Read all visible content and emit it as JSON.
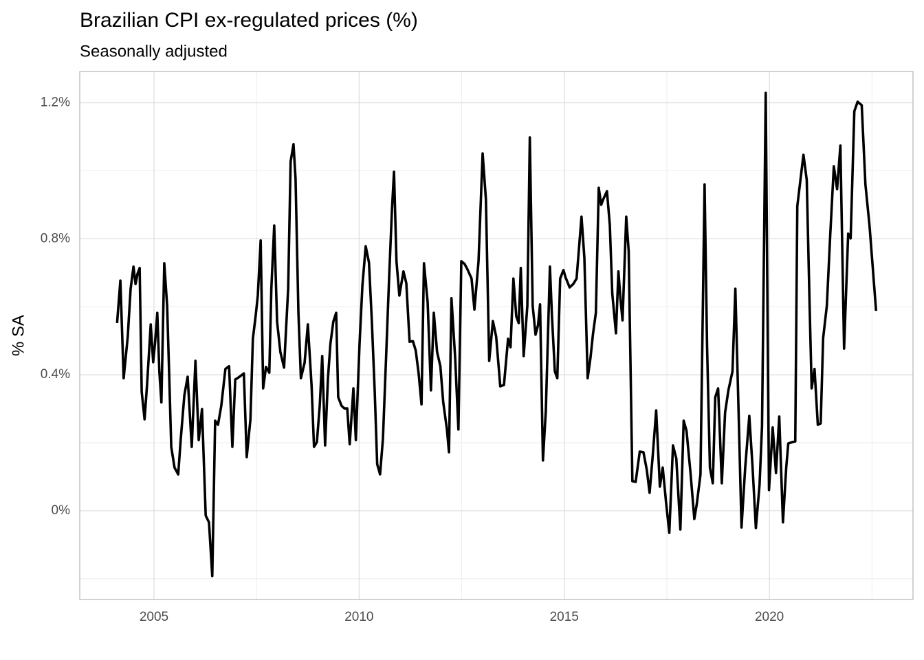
{
  "chart_data": {
    "type": "line",
    "title": "Brazilian CPI ex-regulated prices (%)",
    "subtitle": "Seasonally adjusted",
    "y_label": "% SA",
    "xlim": [
      2003.19,
      2023.5
    ],
    "xticks": [
      2005,
      2010,
      2015,
      2020
    ],
    "minor_xticks": [
      2007.5,
      2012.5,
      2017.5,
      2022.5
    ],
    "ylim": [
      -0.261,
      1.292
    ],
    "yticks": [
      {
        "value": 0,
        "label": "0%"
      },
      {
        "value": 0.4,
        "label": "0.4%"
      },
      {
        "value": 0.8,
        "label": "0.8%"
      },
      {
        "value": 1.2,
        "label": "1.2%"
      }
    ],
    "minor_yticks": [
      -0.2,
      0.2,
      0.6,
      1.0
    ],
    "grid": true,
    "x": [
      2004.1,
      2004.18,
      2004.26,
      2004.36,
      2004.43,
      2004.5,
      2004.55,
      2004.6,
      2004.65,
      2004.7,
      2004.77,
      2004.83,
      2004.92,
      2004.98,
      2005.03,
      2005.08,
      2005.13,
      2005.18,
      2005.25,
      2005.32,
      2005.37,
      2005.42,
      2005.5,
      2005.59,
      2005.65,
      2005.74,
      2005.82,
      2005.92,
      2006.01,
      2006.09,
      2006.17,
      2006.26,
      2006.34,
      2006.42,
      2006.49,
      2006.56,
      2006.64,
      2006.74,
      2006.83,
      2006.91,
      2006.98,
      2007.06,
      2007.19,
      2007.26,
      2007.35,
      2007.41,
      2007.48,
      2007.53,
      2007.6,
      2007.66,
      2007.73,
      2007.81,
      2007.86,
      2007.93,
      2008.0,
      2008.08,
      2008.17,
      2008.27,
      2008.33,
      2008.4,
      2008.45,
      2008.52,
      2008.58,
      2008.67,
      2008.75,
      2008.84,
      2008.9,
      2008.97,
      2009.04,
      2009.1,
      2009.17,
      2009.24,
      2009.3,
      2009.37,
      2009.44,
      2009.49,
      2009.57,
      2009.64,
      2009.71,
      2009.77,
      2009.86,
      2009.92,
      2010.01,
      2010.08,
      2010.16,
      2010.24,
      2010.31,
      2010.38,
      2010.44,
      2010.51,
      2010.58,
      2010.66,
      2010.73,
      2010.8,
      2010.85,
      2010.91,
      2010.98,
      2011.08,
      2011.15,
      2011.23,
      2011.31,
      2011.38,
      2011.45,
      2011.52,
      2011.58,
      2011.67,
      2011.75,
      2011.82,
      2011.9,
      2011.98,
      2012.05,
      2012.14,
      2012.19,
      2012.25,
      2012.34,
      2012.42,
      2012.49,
      2012.57,
      2012.64,
      2012.74,
      2012.81,
      2012.91,
      2013.01,
      2013.09,
      2013.17,
      2013.26,
      2013.34,
      2013.44,
      2013.53,
      2013.63,
      2013.69,
      2013.76,
      2013.83,
      2013.89,
      2013.94,
      2014.01,
      2014.1,
      2014.16,
      2014.23,
      2014.3,
      2014.36,
      2014.41,
      2014.48,
      2014.55,
      2014.65,
      2014.7,
      2014.77,
      2014.83,
      2014.9,
      2014.98,
      2015.03,
      2015.13,
      2015.22,
      2015.3,
      2015.42,
      2015.49,
      2015.57,
      2015.64,
      2015.7,
      2015.77,
      2015.84,
      2015.9,
      2015.95,
      2016.04,
      2016.11,
      2016.17,
      2016.26,
      2016.32,
      2016.37,
      2016.42,
      2016.51,
      2016.57,
      2016.66,
      2016.74,
      2016.84,
      2016.93,
      2017.01,
      2017.08,
      2017.16,
      2017.24,
      2017.33,
      2017.4,
      2017.48,
      2017.56,
      2017.65,
      2017.73,
      2017.83,
      2017.91,
      2017.98,
      2018.08,
      2018.17,
      2018.23,
      2018.32,
      2018.42,
      2018.48,
      2018.55,
      2018.62,
      2018.68,
      2018.75,
      2018.84,
      2018.92,
      2019.0,
      2019.1,
      2019.17,
      2019.25,
      2019.32,
      2019.41,
      2019.51,
      2019.59,
      2019.67,
      2019.76,
      2019.82,
      2019.91,
      2019.99,
      2020.08,
      2020.16,
      2020.24,
      2020.33,
      2020.41,
      2020.46,
      2020.56,
      2020.63,
      2020.68,
      2020.76,
      2020.83,
      2020.91,
      2020.98,
      2021.03,
      2021.1,
      2021.18,
      2021.25,
      2021.31,
      2021.4,
      2021.48,
      2021.57,
      2021.65,
      2021.73,
      2021.82,
      2021.92,
      2021.98,
      2022.07,
      2022.15,
      2022.25,
      2022.34,
      2022.44,
      2022.52,
      2022.6
    ],
    "series": [
      {
        "color": "#000000",
        "values": [
          0.552,
          0.677,
          0.39,
          0.512,
          0.653,
          0.718,
          0.667,
          0.698,
          0.714,
          0.35,
          0.269,
          0.37,
          0.548,
          0.437,
          0.501,
          0.582,
          0.41,
          0.319,
          0.728,
          0.603,
          0.4,
          0.188,
          0.127,
          0.107,
          0.208,
          0.34,
          0.394,
          0.188,
          0.441,
          0.208,
          0.299,
          -0.014,
          -0.034,
          -0.192,
          0.265,
          0.253,
          0.309,
          0.417,
          0.425,
          0.188,
          0.386,
          0.392,
          0.404,
          0.158,
          0.269,
          0.506,
          0.576,
          0.633,
          0.795,
          0.36,
          0.423,
          0.406,
          0.653,
          0.839,
          0.556,
          0.467,
          0.421,
          0.653,
          1.027,
          1.078,
          0.977,
          0.582,
          0.39,
          0.435,
          0.548,
          0.37,
          0.188,
          0.202,
          0.309,
          0.455,
          0.192,
          0.39,
          0.491,
          0.556,
          0.582,
          0.334,
          0.309,
          0.301,
          0.301,
          0.196,
          0.36,
          0.208,
          0.491,
          0.663,
          0.778,
          0.73,
          0.556,
          0.35,
          0.137,
          0.107,
          0.212,
          0.461,
          0.683,
          0.886,
          0.997,
          0.734,
          0.633,
          0.704,
          0.669,
          0.497,
          0.499,
          0.471,
          0.404,
          0.313,
          0.728,
          0.613,
          0.354,
          0.582,
          0.467,
          0.425,
          0.319,
          0.239,
          0.172,
          0.625,
          0.451,
          0.239,
          0.734,
          0.726,
          0.71,
          0.683,
          0.592,
          0.734,
          1.051,
          0.916,
          0.441,
          0.558,
          0.512,
          0.366,
          0.37,
          0.506,
          0.481,
          0.683,
          0.572,
          0.552,
          0.714,
          0.455,
          0.603,
          1.098,
          0.603,
          0.518,
          0.546,
          0.607,
          0.148,
          0.293,
          0.718,
          0.572,
          0.41,
          0.39,
          0.683,
          0.708,
          0.687,
          0.657,
          0.667,
          0.683,
          0.865,
          0.744,
          0.39,
          0.451,
          0.52,
          0.582,
          0.95,
          0.9,
          0.916,
          0.94,
          0.841,
          0.639,
          0.522,
          0.704,
          0.623,
          0.56,
          0.865,
          0.764,
          0.087,
          0.085,
          0.174,
          0.172,
          0.121,
          0.053,
          0.168,
          0.295,
          0.071,
          0.127,
          0.026,
          -0.065,
          0.192,
          0.154,
          -0.055,
          0.265,
          0.235,
          0.107,
          -0.024,
          0.02,
          0.107,
          0.96,
          0.487,
          0.127,
          0.081,
          0.334,
          0.36,
          0.081,
          0.289,
          0.354,
          0.41,
          0.653,
          0.285,
          -0.049,
          0.127,
          0.279,
          0.127,
          -0.051,
          0.077,
          0.249,
          1.229,
          0.061,
          0.245,
          0.111,
          0.277,
          -0.034,
          0.127,
          0.198,
          0.202,
          0.204,
          0.896,
          0.977,
          1.047,
          0.973,
          0.603,
          0.36,
          0.417,
          0.253,
          0.257,
          0.508,
          0.603,
          0.805,
          1.013,
          0.946,
          1.074,
          0.477,
          0.815,
          0.801,
          1.175,
          1.203,
          1.193,
          0.96,
          0.839,
          0.714,
          0.588
        ]
      }
    ]
  }
}
